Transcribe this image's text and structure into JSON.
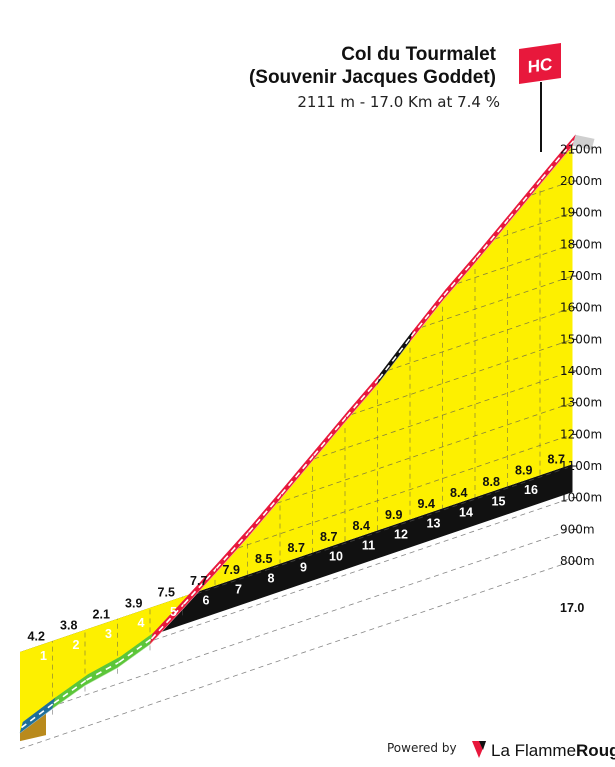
{
  "chart_data": {
    "type": "area",
    "title_line1": "Col du Tourmalet",
    "title_line2": "(Souvenir Jacques Goddet)",
    "subtitle": "2111 m - 17.0 Km at 7.4 %",
    "category_badge": "HC",
    "total_distance_label": "17.0",
    "altitude_ticks": [
      "800m",
      "900m",
      "1000m",
      "1100m",
      "1200m",
      "1300m",
      "1400m",
      "1500m",
      "1600m",
      "1700m",
      "1800m",
      "1900m",
      "2000m",
      "2100m"
    ],
    "km_labels": [
      "1",
      "2",
      "3",
      "4",
      "5",
      "6",
      "7",
      "8",
      "9",
      "10",
      "11",
      "12",
      "13",
      "14",
      "15",
      "16"
    ],
    "segments": [
      {
        "km_start": 0,
        "km_end": 1,
        "gradient": "4.2",
        "color": "#1f6f9a"
      },
      {
        "km_start": 1,
        "km_end": 2,
        "gradient": "3.8",
        "color": "#5cc63a"
      },
      {
        "km_start": 2,
        "km_end": 3,
        "gradient": "2.1",
        "color": "#5cc63a"
      },
      {
        "km_start": 3,
        "km_end": 4,
        "gradient": "3.9",
        "color": "#5cc63a"
      },
      {
        "km_start": 4,
        "km_end": 5,
        "gradient": "7.5",
        "color": "#e8183c"
      },
      {
        "km_start": 5,
        "km_end": 6,
        "gradient": "7.7",
        "color": "#e8183c"
      },
      {
        "km_start": 6,
        "km_end": 7,
        "gradient": "7.9",
        "color": "#e8183c"
      },
      {
        "km_start": 7,
        "km_end": 8,
        "gradient": "8.5",
        "color": "#e8183c"
      },
      {
        "km_start": 8,
        "km_end": 9,
        "gradient": "8.7",
        "color": "#e8183c"
      },
      {
        "km_start": 9,
        "km_end": 10,
        "gradient": "8.7",
        "color": "#e8183c"
      },
      {
        "km_start": 10,
        "km_end": 11,
        "gradient": "8.4",
        "color": "#e8183c"
      },
      {
        "km_start": 11,
        "km_end": 12,
        "gradient": "9.9",
        "color": "#111111"
      },
      {
        "km_start": 12,
        "km_end": 13,
        "gradient": "9.4",
        "color": "#e8183c"
      },
      {
        "km_start": 13,
        "km_end": 14,
        "gradient": "8.4",
        "color": "#e8183c"
      },
      {
        "km_start": 14,
        "km_end": 15,
        "gradient": "8.8",
        "color": "#e8183c"
      },
      {
        "km_start": 15,
        "km_end": 16,
        "gradient": "8.9",
        "color": "#e8183c"
      },
      {
        "km_start": 16,
        "km_end": 17,
        "gradient": "8.7",
        "color": "#e8183c"
      }
    ],
    "start_altitude_m": 850,
    "summit_altitude_m": 2111,
    "fill_color": "#fdf000",
    "grid": true
  },
  "footer": {
    "powered_by": "Powered by",
    "brand_a": "La Flamme",
    "brand_b": "Rouge"
  }
}
